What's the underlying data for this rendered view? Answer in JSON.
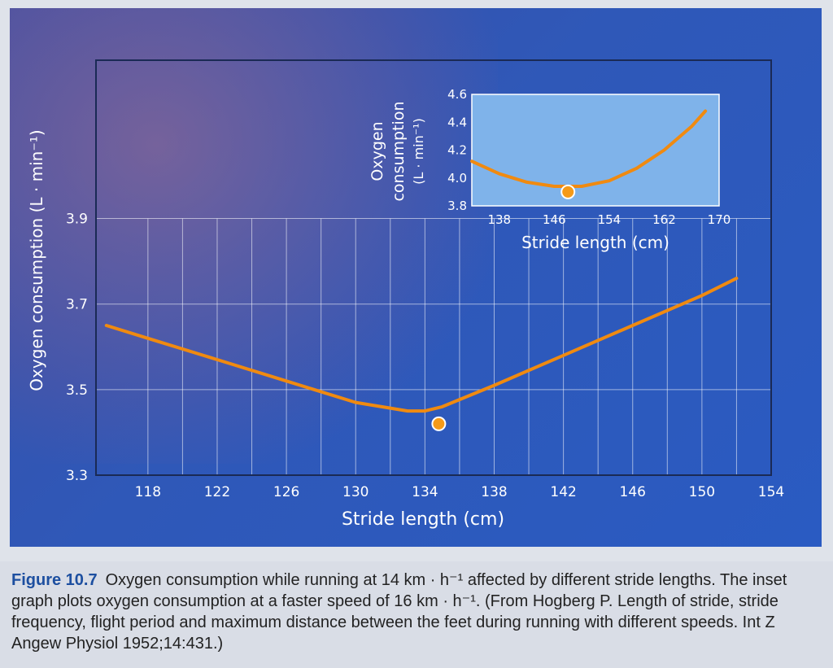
{
  "chart_data": [
    {
      "type": "line",
      "role": "main",
      "xlabel": "Stride length (cm)",
      "ylabel": "Oxygen consumption (L · min⁻¹)",
      "xlim": [
        115,
        154
      ],
      "ylim": [
        3.3,
        4.27
      ],
      "x_ticks": [
        118,
        122,
        126,
        130,
        134,
        138,
        142,
        146,
        150,
        154
      ],
      "y_ticks": [
        3.3,
        3.5,
        3.7,
        3.9
      ],
      "grid": true,
      "series": [
        {
          "x": [
            115.6,
            118,
            122,
            126,
            130,
            133,
            134,
            135,
            138,
            142,
            146,
            150,
            152
          ],
          "y": [
            3.65,
            3.62,
            3.57,
            3.52,
            3.47,
            3.45,
            3.45,
            3.46,
            3.51,
            3.58,
            3.65,
            3.72,
            3.76
          ]
        }
      ],
      "marker": {
        "x": 134.8,
        "y": 3.42
      }
    },
    {
      "type": "line",
      "role": "inset",
      "xlabel": "Stride length (cm)",
      "ylabel_lines": [
        "Oxygen",
        "consumption",
        "(L · min⁻¹)"
      ],
      "xlim": [
        134,
        170
      ],
      "ylim": [
        3.8,
        4.6
      ],
      "x_ticks": [
        138,
        146,
        154,
        162,
        170
      ],
      "y_ticks": [
        3.8,
        4.0,
        4.2,
        4.4,
        4.6
      ],
      "grid": false,
      "series": [
        {
          "x": [
            134,
            138,
            142,
            146,
            150,
            154,
            158,
            162,
            166,
            168
          ],
          "y": [
            4.12,
            4.03,
            3.97,
            3.94,
            3.94,
            3.98,
            4.07,
            4.2,
            4.37,
            4.48
          ]
        }
      ],
      "marker": {
        "x": 148,
        "y": 3.9
      }
    }
  ],
  "colors": {
    "curve": "#f08a10",
    "marker_fill": "#f59a18",
    "marker_stroke": "#ffffff",
    "grid": "#ffffff",
    "inset_bg": "#7fb3ea"
  },
  "caption": {
    "label": "Figure 10.7",
    "text": "Oxygen consumption while running at 14 km · h⁻¹ affected by different stride lengths. The inset graph plots oxygen consumption at a faster speed of 16 km · h⁻¹. (From Hogberg P. Length of stride, stride frequency, flight period and maximum distance between the feet during running with different speeds. Int Z Angew Physiol 1952;14:431.)"
  }
}
